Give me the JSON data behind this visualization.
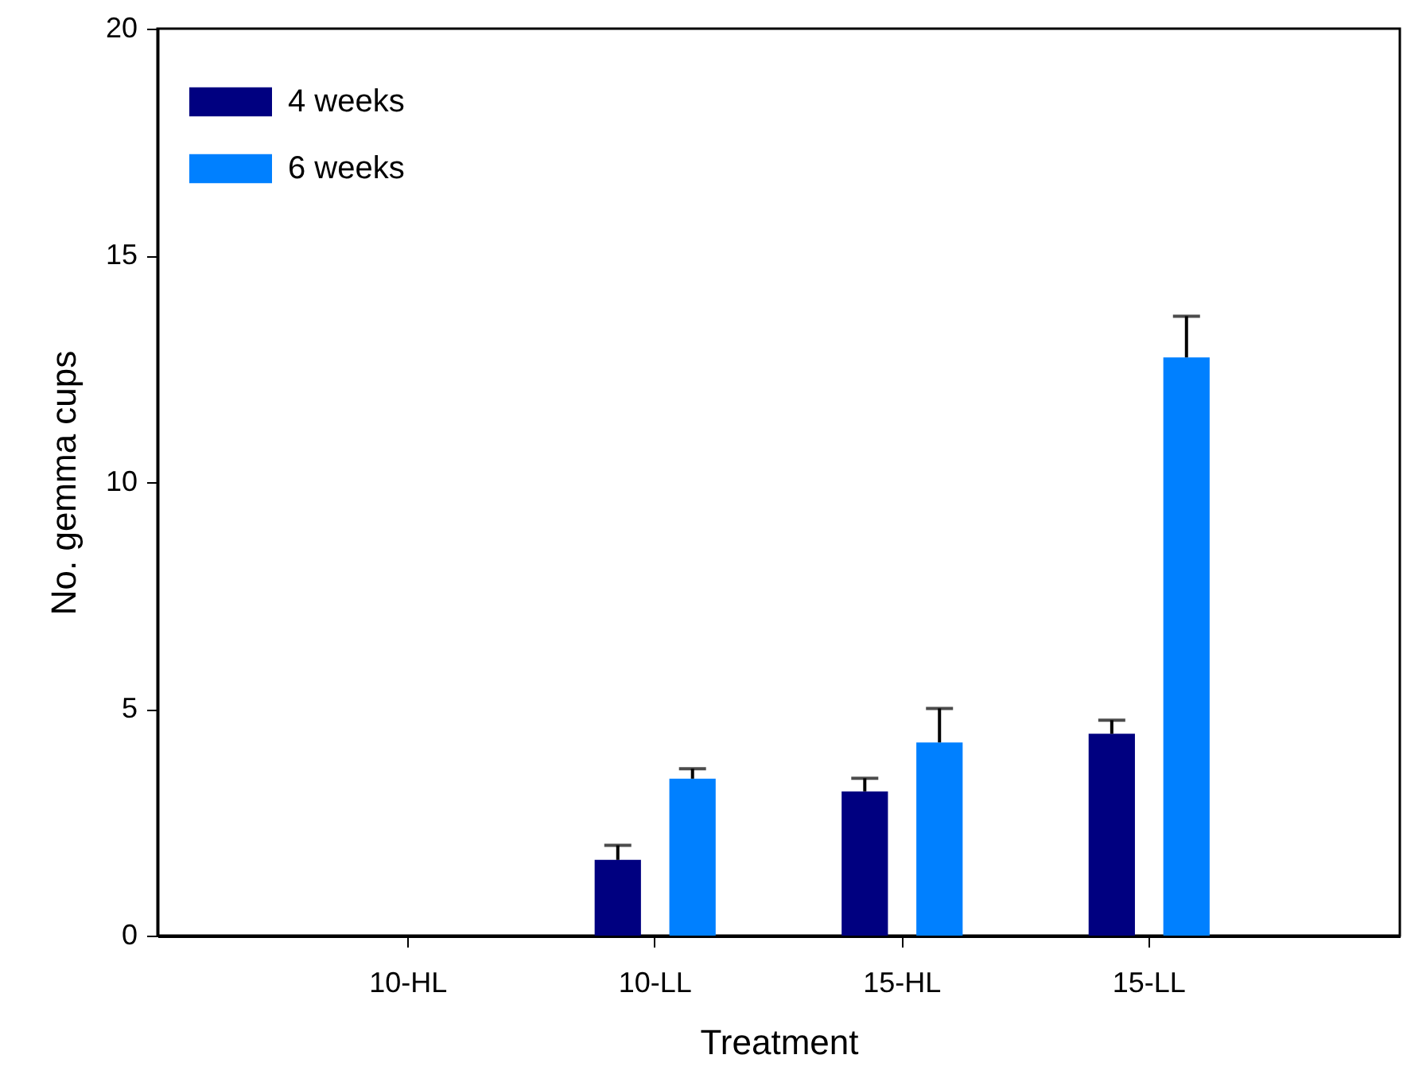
{
  "chart_data": {
    "type": "bar",
    "xlabel": "Treatment",
    "ylabel": "No. gemma cups",
    "categories": [
      "10-HL",
      "10-LL",
      "15-HL",
      "15-LL"
    ],
    "series": [
      {
        "name": "4 weeks",
        "color": "#000080",
        "values": [
          0,
          1.67,
          3.18,
          4.45
        ],
        "errors": [
          null,
          [
            1.67,
            1.99
          ],
          [
            3.18,
            3.47
          ],
          [
            4.45,
            4.75
          ]
        ]
      },
      {
        "name": "6 weeks",
        "color": "#0080ff",
        "values": [
          0,
          3.46,
          4.26,
          12.75
        ],
        "errors": [
          null,
          [
            3.46,
            3.68
          ],
          [
            4.26,
            5.01
          ],
          [
            12.75,
            13.66
          ]
        ]
      }
    ],
    "ylim": [
      0,
      20
    ],
    "yticks": [
      0,
      5,
      10,
      15,
      20
    ],
    "legend": "top left",
    "grid": false
  }
}
